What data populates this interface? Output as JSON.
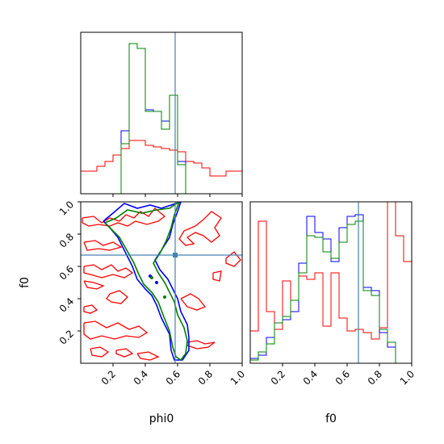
{
  "chart_data": {
    "type": "corner",
    "parameters": [
      "phi0",
      "f0"
    ],
    "labels": {
      "phi0": "phi0",
      "f0": "f0"
    },
    "range": [
      0,
      1
    ],
    "ticks": [
      "0.2",
      "0.4",
      "0.6",
      "0.8",
      "1.0"
    ],
    "tick_values": [
      0.2,
      0.4,
      0.6,
      0.8,
      1.0
    ],
    "truths": {
      "phi0": 0.585,
      "f0": 0.67
    },
    "colors": {
      "truth": "#4682b4",
      "series_red": "#ff0000",
      "series_blue": "#0000ff",
      "series_green": "#008000"
    },
    "hist_phi0": {
      "bin_edges": [
        0,
        0.05,
        0.1,
        0.15,
        0.2,
        0.25,
        0.3,
        0.35,
        0.4,
        0.45,
        0.5,
        0.55,
        0.6,
        0.65,
        0.7,
        0.75,
        0.8,
        0.85,
        0.9,
        0.95,
        1.0
      ],
      "ymax": 1.0,
      "series": [
        {
          "color": "red",
          "values": [
            0.14,
            0.14,
            0.17,
            0.2,
            0.24,
            0.28,
            0.33,
            0.33,
            0.3,
            0.29,
            0.28,
            0.27,
            0.26,
            0.2,
            0.19,
            0.16,
            0.11,
            0.11,
            0.14,
            0.14
          ]
        },
        {
          "color": "blue",
          "values": [
            0,
            0,
            0,
            0,
            0,
            0.39,
            0.93,
            0.9,
            0.52,
            0.51,
            0.45,
            0.61,
            0.2,
            0,
            0,
            0,
            0,
            0,
            0,
            0
          ]
        },
        {
          "color": "green",
          "values": [
            0,
            0,
            0,
            0,
            0,
            0.31,
            0.93,
            0.9,
            0.51,
            0.51,
            0.4,
            0.61,
            0.18,
            0,
            0,
            0,
            0,
            0,
            0,
            0
          ]
        }
      ]
    },
    "hist_f0": {
      "bin_edges": [
        0,
        0.05,
        0.1,
        0.15,
        0.2,
        0.25,
        0.3,
        0.35,
        0.4,
        0.45,
        0.5,
        0.55,
        0.6,
        0.65,
        0.7,
        0.75,
        0.8,
        0.85,
        0.9,
        0.95,
        1.0
      ],
      "ymax": 1.0,
      "series": [
        {
          "color": "red",
          "values": [
            0.2,
            0.88,
            0.32,
            0.21,
            0.51,
            0.32,
            0.54,
            0.52,
            0.56,
            0.23,
            0.56,
            0.28,
            0.2,
            0.21,
            0.19,
            0.15,
            0.22,
            1.0,
            0.79,
            0.63
          ]
        },
        {
          "color": "blue",
          "values": [
            0.03,
            0.05,
            0.16,
            0.25,
            0.27,
            0.32,
            0.62,
            0.91,
            0.81,
            0.77,
            0.63,
            0.84,
            0.91,
            0.92,
            0.47,
            0.45,
            0.19,
            0.1,
            0,
            0
          ]
        },
        {
          "color": "green",
          "values": [
            0.02,
            0.07,
            0.12,
            0.25,
            0.29,
            0.39,
            0.56,
            0.79,
            0.78,
            0.69,
            0.65,
            0.75,
            0.86,
            0.88,
            0.45,
            0.42,
            0.21,
            0.13,
            0,
            0
          ]
        }
      ]
    },
    "joint_contours": [
      {
        "color": "red",
        "path": [
          [
            0.01,
            0.9
          ],
          [
            0.08,
            0.91
          ],
          [
            0.13,
            0.87
          ],
          [
            0.18,
            0.9
          ],
          [
            0.24,
            0.88
          ],
          [
            0.28,
            0.92
          ],
          [
            0.33,
            0.9
          ],
          [
            0.37,
            0.94
          ],
          [
            0.42,
            0.91
          ],
          [
            0.46,
            0.96
          ],
          [
            0.52,
            0.91
          ],
          [
            0.48,
            0.88
          ],
          [
            0.41,
            0.86
          ],
          [
            0.34,
            0.88
          ],
          [
            0.29,
            0.85
          ],
          [
            0.23,
            0.87
          ],
          [
            0.18,
            0.85
          ],
          [
            0.11,
            0.86
          ],
          [
            0.05,
            0.85
          ],
          [
            0.01,
            0.87
          ],
          [
            0.01,
            0.9
          ]
        ]
      },
      {
        "color": "red",
        "path": [
          [
            0.02,
            0.75
          ],
          [
            0.09,
            0.76
          ],
          [
            0.14,
            0.73
          ],
          [
            0.2,
            0.75
          ],
          [
            0.25,
            0.72
          ],
          [
            0.18,
            0.7
          ],
          [
            0.11,
            0.71
          ],
          [
            0.04,
            0.7
          ],
          [
            0.02,
            0.75
          ]
        ]
      },
      {
        "color": "red",
        "path": [
          [
            0.02,
            0.6
          ],
          [
            0.08,
            0.61
          ],
          [
            0.13,
            0.58
          ],
          [
            0.19,
            0.61
          ],
          [
            0.23,
            0.57
          ],
          [
            0.28,
            0.59
          ],
          [
            0.32,
            0.56
          ],
          [
            0.27,
            0.53
          ],
          [
            0.2,
            0.55
          ],
          [
            0.13,
            0.53
          ],
          [
            0.06,
            0.55
          ],
          [
            0.02,
            0.56
          ],
          [
            0.02,
            0.6
          ]
        ]
      },
      {
        "color": "red",
        "path": [
          [
            0.02,
            0.51
          ],
          [
            0.08,
            0.5
          ],
          [
            0.14,
            0.48
          ],
          [
            0.1,
            0.46
          ],
          [
            0.04,
            0.47
          ],
          [
            0.02,
            0.51
          ]
        ]
      },
      {
        "color": "red",
        "path": [
          [
            0.18,
            0.43
          ],
          [
            0.24,
            0.45
          ],
          [
            0.29,
            0.41
          ],
          [
            0.25,
            0.37
          ],
          [
            0.19,
            0.38
          ],
          [
            0.16,
            0.4
          ],
          [
            0.18,
            0.43
          ]
        ]
      },
      {
        "color": "red",
        "path": [
          [
            0.02,
            0.35
          ],
          [
            0.07,
            0.36
          ],
          [
            0.1,
            0.33
          ],
          [
            0.06,
            0.31
          ],
          [
            0.02,
            0.32
          ],
          [
            0.02,
            0.35
          ]
        ]
      },
      {
        "color": "red",
        "path": [
          [
            0.02,
            0.25
          ],
          [
            0.09,
            0.26
          ],
          [
            0.16,
            0.22
          ],
          [
            0.23,
            0.25
          ],
          [
            0.3,
            0.21
          ],
          [
            0.36,
            0.23
          ],
          [
            0.41,
            0.19
          ],
          [
            0.36,
            0.16
          ],
          [
            0.28,
            0.17
          ],
          [
            0.21,
            0.15
          ],
          [
            0.13,
            0.17
          ],
          [
            0.06,
            0.15
          ],
          [
            0.02,
            0.18
          ],
          [
            0.02,
            0.25
          ]
        ]
      },
      {
        "color": "red",
        "path": [
          [
            0.06,
            0.09
          ],
          [
            0.12,
            0.1
          ],
          [
            0.17,
            0.07
          ],
          [
            0.13,
            0.04
          ],
          [
            0.07,
            0.05
          ],
          [
            0.06,
            0.09
          ]
        ]
      },
      {
        "color": "red",
        "path": [
          [
            0.22,
            0.08
          ],
          [
            0.28,
            0.09
          ],
          [
            0.32,
            0.06
          ],
          [
            0.27,
            0.04
          ],
          [
            0.22,
            0.06
          ],
          [
            0.22,
            0.08
          ]
        ]
      },
      {
        "color": "red",
        "path": [
          [
            0.35,
            0.06
          ],
          [
            0.42,
            0.07
          ],
          [
            0.48,
            0.04
          ],
          [
            0.43,
            0.02
          ],
          [
            0.37,
            0.03
          ],
          [
            0.35,
            0.06
          ]
        ]
      },
      {
        "color": "red",
        "path": [
          [
            0.62,
            0.4
          ],
          [
            0.68,
            0.43
          ],
          [
            0.73,
            0.4
          ],
          [
            0.77,
            0.35
          ],
          [
            0.72,
            0.33
          ],
          [
            0.66,
            0.35
          ],
          [
            0.62,
            0.4
          ]
        ]
      },
      {
        "color": "red",
        "path": [
          [
            0.66,
            0.13
          ],
          [
            0.72,
            0.14
          ],
          [
            0.77,
            0.12
          ],
          [
            0.83,
            0.13
          ],
          [
            0.79,
            0.1
          ],
          [
            0.72,
            0.09
          ],
          [
            0.66,
            0.11
          ],
          [
            0.66,
            0.13
          ]
        ]
      },
      {
        "color": "red",
        "path": [
          [
            0.71,
            0.85
          ],
          [
            0.76,
            0.89
          ],
          [
            0.81,
            0.94
          ],
          [
            0.87,
            0.9
          ],
          [
            0.83,
            0.84
          ],
          [
            0.86,
            0.79
          ],
          [
            0.81,
            0.75
          ],
          [
            0.76,
            0.79
          ],
          [
            0.71,
            0.81
          ],
          [
            0.66,
            0.78
          ],
          [
            0.7,
            0.74
          ],
          [
            0.65,
            0.73
          ],
          [
            0.61,
            0.77
          ],
          [
            0.64,
            0.82
          ],
          [
            0.71,
            0.85
          ]
        ]
      },
      {
        "color": "red",
        "path": [
          [
            0.9,
            0.65
          ],
          [
            0.95,
            0.69
          ],
          [
            0.99,
            0.64
          ],
          [
            0.95,
            0.6
          ],
          [
            0.9,
            0.62
          ],
          [
            0.9,
            0.65
          ]
        ]
      },
      {
        "color": "red",
        "path": [
          [
            0.82,
            0.56
          ],
          [
            0.87,
            0.57
          ],
          [
            0.86,
            0.51
          ],
          [
            0.82,
            0.52
          ],
          [
            0.82,
            0.56
          ]
        ]
      },
      {
        "color": "blue",
        "path": [
          [
            0.14,
            0.88
          ],
          [
            0.2,
            0.93
          ],
          [
            0.27,
            0.99
          ],
          [
            0.35,
            0.96
          ],
          [
            0.43,
            0.98
          ],
          [
            0.5,
            0.96
          ],
          [
            0.56,
            0.98
          ],
          [
            0.62,
            1.0
          ],
          [
            0.6,
            0.94
          ],
          [
            0.57,
            0.86
          ],
          [
            0.55,
            0.78
          ],
          [
            0.5,
            0.7
          ],
          [
            0.46,
            0.64
          ],
          [
            0.49,
            0.58
          ],
          [
            0.54,
            0.52
          ],
          [
            0.57,
            0.46
          ],
          [
            0.6,
            0.4
          ],
          [
            0.62,
            0.32
          ],
          [
            0.66,
            0.24
          ],
          [
            0.67,
            0.16
          ],
          [
            0.67,
            0.08
          ],
          [
            0.63,
            0.02
          ],
          [
            0.58,
            0.02
          ],
          [
            0.56,
            0.08
          ],
          [
            0.55,
            0.18
          ],
          [
            0.5,
            0.28
          ],
          [
            0.47,
            0.36
          ],
          [
            0.44,
            0.42
          ],
          [
            0.4,
            0.46
          ],
          [
            0.35,
            0.52
          ],
          [
            0.32,
            0.6
          ],
          [
            0.27,
            0.7
          ],
          [
            0.23,
            0.78
          ],
          [
            0.18,
            0.84
          ],
          [
            0.14,
            0.88
          ]
        ]
      },
      {
        "color": "green",
        "path": [
          [
            0.15,
            0.87
          ],
          [
            0.22,
            0.9
          ],
          [
            0.29,
            0.95
          ],
          [
            0.38,
            0.93
          ],
          [
            0.47,
            0.95
          ],
          [
            0.55,
            0.96
          ],
          [
            0.61,
            1.0
          ],
          [
            0.58,
            0.92
          ],
          [
            0.56,
            0.84
          ],
          [
            0.53,
            0.76
          ],
          [
            0.49,
            0.68
          ],
          [
            0.45,
            0.62
          ],
          [
            0.48,
            0.56
          ],
          [
            0.52,
            0.5
          ],
          [
            0.55,
            0.44
          ],
          [
            0.58,
            0.38
          ],
          [
            0.6,
            0.3
          ],
          [
            0.64,
            0.22
          ],
          [
            0.66,
            0.14
          ],
          [
            0.65,
            0.06
          ],
          [
            0.62,
            0.02
          ],
          [
            0.59,
            0.04
          ],
          [
            0.57,
            0.1
          ],
          [
            0.55,
            0.2
          ],
          [
            0.51,
            0.3
          ],
          [
            0.48,
            0.38
          ],
          [
            0.44,
            0.44
          ],
          [
            0.39,
            0.49
          ],
          [
            0.36,
            0.55
          ],
          [
            0.33,
            0.62
          ],
          [
            0.28,
            0.71
          ],
          [
            0.24,
            0.78
          ],
          [
            0.19,
            0.83
          ],
          [
            0.15,
            0.87
          ]
        ]
      }
    ],
    "joint_points": [
      {
        "x": 0.43,
        "y": 0.54,
        "color": "blue"
      },
      {
        "x": 0.44,
        "y": 0.53,
        "color": "green"
      },
      {
        "x": 0.47,
        "y": 0.5,
        "color": "blue"
      },
      {
        "x": 0.52,
        "y": 0.41,
        "color": "green"
      },
      {
        "x": 0.585,
        "y": 0.67,
        "color": "truth"
      }
    ]
  }
}
